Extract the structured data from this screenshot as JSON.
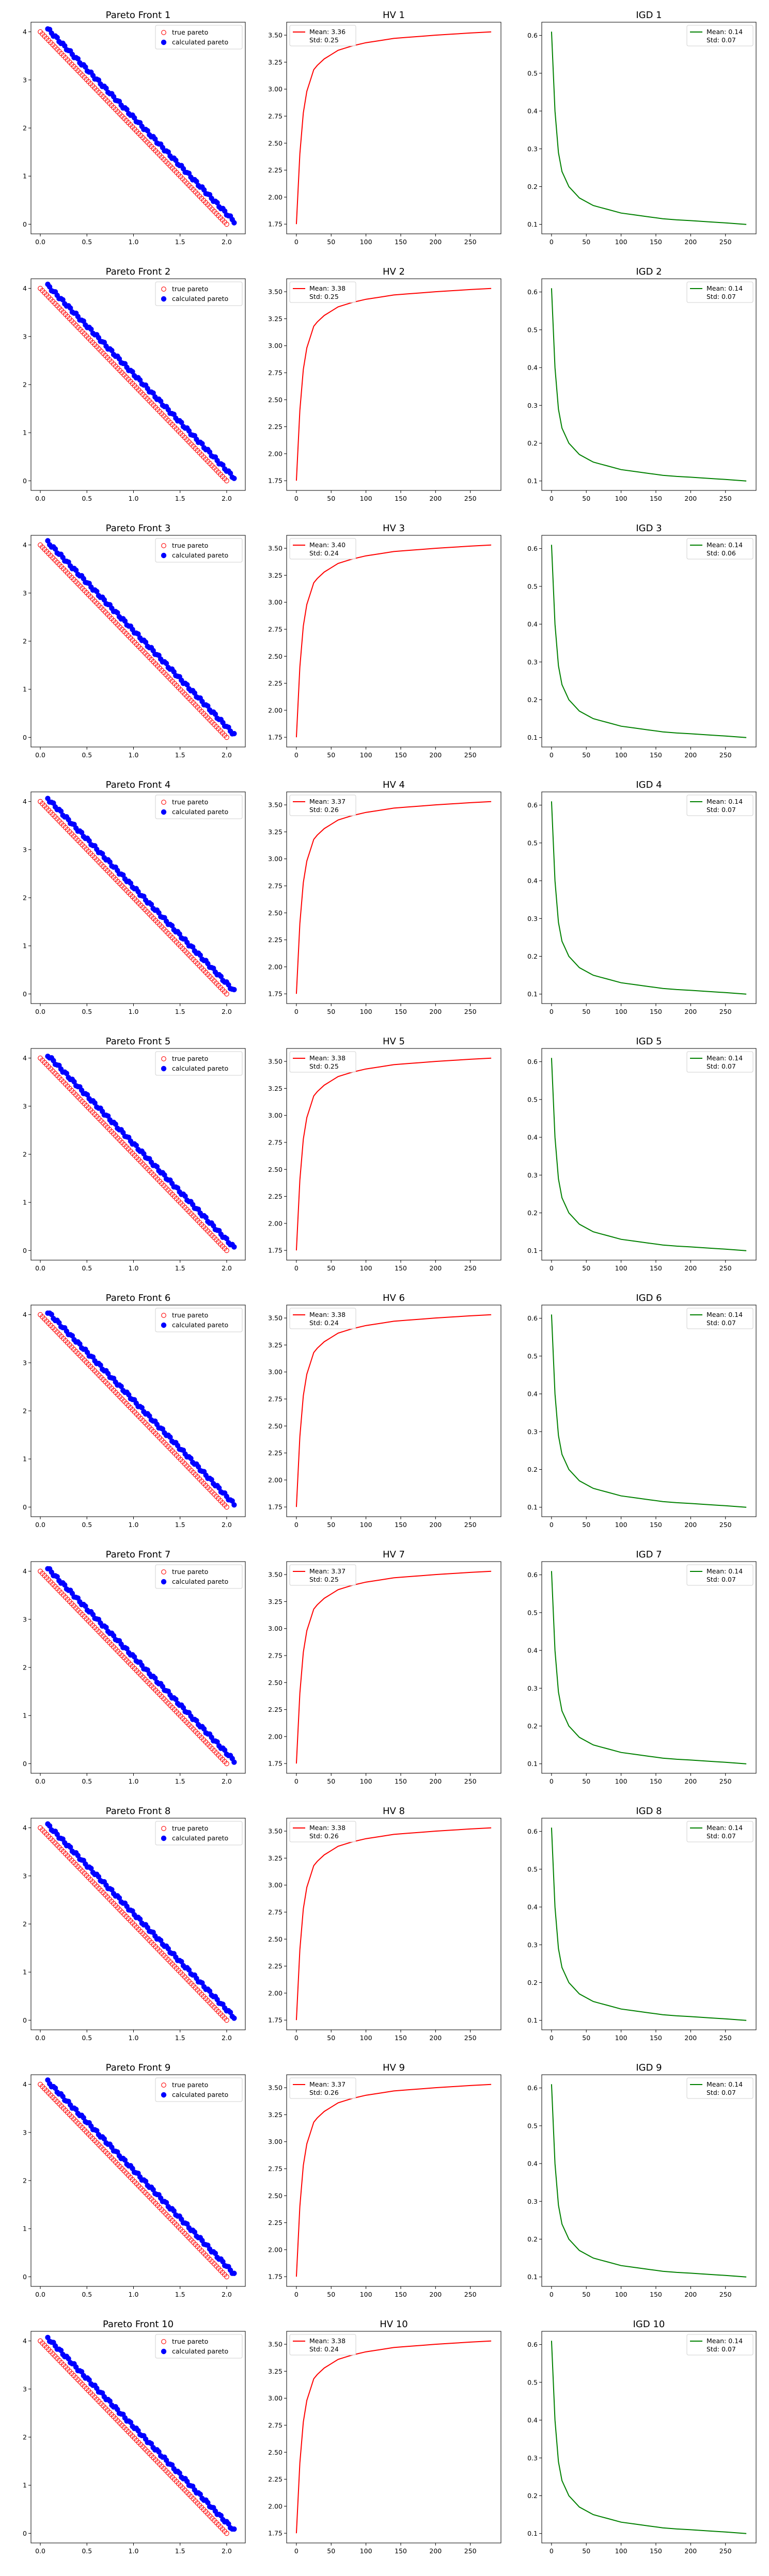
{
  "colors": {
    "true_pareto": "#ff0000",
    "calculated_pareto": "#0000ff",
    "hv": "#ff0000",
    "igd": "#008000",
    "axes": "#000000"
  },
  "legend": {
    "true_label": "true pareto",
    "calc_label": "calculated pareto"
  },
  "rows": [
    {
      "pareto_title": "Pareto Front 1",
      "hv_title": "HV 1",
      "igd_title": "IGD 1",
      "hv_mean": "Mean: 3.36",
      "hv_std": "Std: 0.25",
      "igd_mean": "Mean: 0.14",
      "igd_std": "Std: 0.07"
    },
    {
      "pareto_title": "Pareto Front 2",
      "hv_title": "HV 2",
      "igd_title": "IGD 2",
      "hv_mean": "Mean: 3.38",
      "hv_std": "Std: 0.25",
      "igd_mean": "Mean: 0.14",
      "igd_std": "Std: 0.07"
    },
    {
      "pareto_title": "Pareto Front 3",
      "hv_title": "HV 3",
      "igd_title": "IGD 3",
      "hv_mean": "Mean: 3.40",
      "hv_std": "Std: 0.24",
      "igd_mean": "Mean: 0.14",
      "igd_std": "Std: 0.06"
    },
    {
      "pareto_title": "Pareto Front 4",
      "hv_title": "HV 4",
      "igd_title": "IGD 4",
      "hv_mean": "Mean: 3.37",
      "hv_std": "Std: 0.26",
      "igd_mean": "Mean: 0.14",
      "igd_std": "Std: 0.07"
    },
    {
      "pareto_title": "Pareto Front 5",
      "hv_title": "HV 5",
      "igd_title": "IGD 5",
      "hv_mean": "Mean: 3.38",
      "hv_std": "Std: 0.25",
      "igd_mean": "Mean: 0.14",
      "igd_std": "Std: 0.07"
    },
    {
      "pareto_title": "Pareto Front 6",
      "hv_title": "HV 6",
      "igd_title": "IGD 6",
      "hv_mean": "Mean: 3.38",
      "hv_std": "Std: 0.24",
      "igd_mean": "Mean: 0.14",
      "igd_std": "Std: 0.07"
    },
    {
      "pareto_title": "Pareto Front 7",
      "hv_title": "HV 7",
      "igd_title": "IGD 7",
      "hv_mean": "Mean: 3.37",
      "hv_std": "Std: 0.25",
      "igd_mean": "Mean: 0.14",
      "igd_std": "Std: 0.07"
    },
    {
      "pareto_title": "Pareto Front 8",
      "hv_title": "HV 8",
      "igd_title": "IGD 8",
      "hv_mean": "Mean: 3.38",
      "hv_std": "Std: 0.26",
      "igd_mean": "Mean: 0.14",
      "igd_std": "Std: 0.07"
    },
    {
      "pareto_title": "Pareto Front 9",
      "hv_title": "HV 9",
      "igd_title": "IGD 9",
      "hv_mean": "Mean: 3.37",
      "hv_std": "Std: 0.26",
      "igd_mean": "Mean: 0.14",
      "igd_std": "Std: 0.07"
    },
    {
      "pareto_title": "Pareto Front 10",
      "hv_title": "HV 10",
      "igd_title": "IGD 10",
      "hv_mean": "Mean: 3.38",
      "hv_std": "Std: 0.24",
      "igd_mean": "Mean: 0.14",
      "igd_std": "Std: 0.07"
    }
  ],
  "chart_data": {
    "type": "grid",
    "layout": "10 rows x 3 columns",
    "pareto": {
      "type": "scatter",
      "xlim": [
        -0.1,
        2.2
      ],
      "ylim": [
        -0.2,
        4.2
      ],
      "xticks": [
        "0.0",
        "0.5",
        "1.0",
        "1.5",
        "2.0"
      ],
      "yticks": [
        "0",
        "1",
        "2",
        "3",
        "4"
      ],
      "true_pareto": {
        "x_start": 0.0,
        "y_start": 4.0,
        "x_end": 2.0,
        "y_end": 0.0,
        "points": 90,
        "marker": "open circle"
      },
      "calculated_pareto": {
        "x_start": 0.08,
        "y_start": 4.06,
        "x_end": 2.08,
        "y_end": 0.06,
        "points": 100,
        "marker": "filled circle"
      },
      "legend_position": "top-right"
    },
    "hv": {
      "type": "line",
      "x": [
        0,
        5,
        10,
        15,
        20,
        25,
        30,
        40,
        50,
        60,
        70,
        80,
        100,
        120,
        140,
        160,
        180,
        200,
        225,
        250,
        280
      ],
      "values": [
        1.75,
        2.4,
        2.78,
        2.98,
        3.08,
        3.18,
        3.22,
        3.28,
        3.32,
        3.36,
        3.38,
        3.4,
        3.43,
        3.45,
        3.47,
        3.48,
        3.49,
        3.5,
        3.51,
        3.52,
        3.53
      ],
      "xticks": [
        "0",
        "50",
        "100",
        "150",
        "200",
        "250"
      ],
      "yticks": [
        "1.75",
        "2.00",
        "2.25",
        "2.50",
        "2.75",
        "3.00",
        "3.25",
        "3.50"
      ],
      "xlim": [
        -14,
        294
      ],
      "ylim": [
        1.66,
        3.62
      ],
      "legend_position": "top-left"
    },
    "igd": {
      "type": "line",
      "x": [
        0,
        5,
        10,
        15,
        20,
        25,
        30,
        40,
        50,
        60,
        70,
        80,
        100,
        120,
        140,
        160,
        180,
        200,
        225,
        250,
        280
      ],
      "values": [
        0.61,
        0.4,
        0.29,
        0.24,
        0.22,
        0.2,
        0.19,
        0.17,
        0.16,
        0.15,
        0.145,
        0.14,
        0.13,
        0.125,
        0.12,
        0.115,
        0.112,
        0.11,
        0.107,
        0.104,
        0.1
      ],
      "xticks": [
        "0",
        "50",
        "100",
        "150",
        "200",
        "250"
      ],
      "yticks": [
        "0.1",
        "0.2",
        "0.3",
        "0.4",
        "0.5",
        "0.6"
      ],
      "xlim": [
        -14,
        294
      ],
      "ylim": [
        0.075,
        0.635
      ],
      "legend_position": "top-right"
    }
  }
}
